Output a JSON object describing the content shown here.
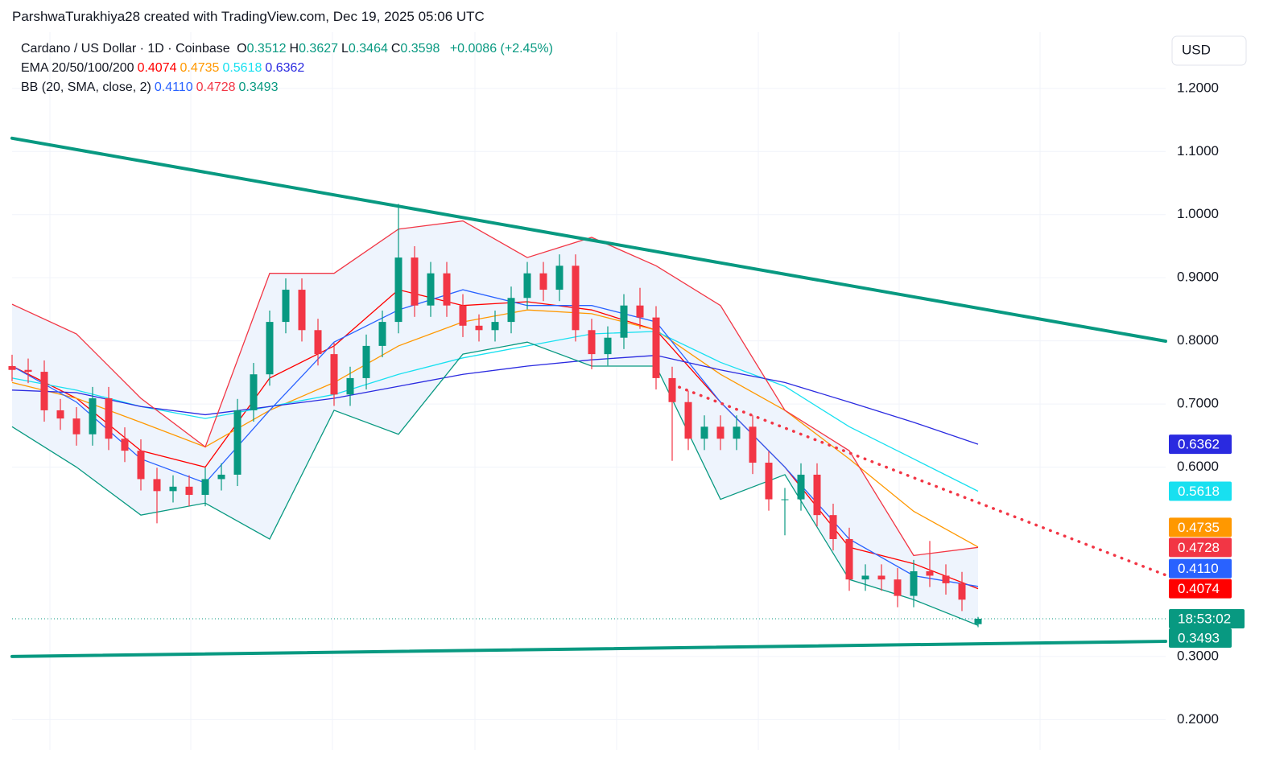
{
  "credit": "ParshwaTurakhiya28 created with TradingView.com, Dec 19, 2025 05:06 UTC",
  "chart_data": {
    "type": "candlestick",
    "title": "Cardano / US Dollar · 1D · Coinbase",
    "currency": "USD",
    "ohlc": [
      {
        "label": "O",
        "value": 0.3512
      },
      {
        "label": "H",
        "value": 0.3627
      },
      {
        "label": "L",
        "value": 0.3464
      },
      {
        "label": "C",
        "value": 0.3598
      }
    ],
    "change": "+0.0086 (+2.45%)",
    "up_color": "#089981",
    "down_color": "#f23645",
    "open": [
      0.76,
      0.754,
      0.751,
      0.69,
      0.677,
      0.652,
      0.709,
      0.645,
      0.626,
      0.581,
      0.562,
      0.569,
      0.556,
      0.581,
      0.588,
      0.69,
      0.747,
      0.83,
      0.881,
      0.817,
      0.779,
      0.715,
      0.741,
      0.792,
      0.83,
      0.932,
      0.856,
      0.907,
      0.856,
      0.824,
      0.817,
      0.83,
      0.868,
      0.907,
      0.881,
      0.919,
      0.817,
      0.779,
      0.805,
      0.856,
      0.837,
      0.741,
      0.703,
      0.645,
      0.664,
      0.645,
      0.664,
      0.607,
      0.549,
      0.549,
      0.588,
      0.524,
      0.486,
      0.422,
      0.428,
      0.422,
      0.396,
      0.435,
      0.428,
      0.416,
      0.3512
    ],
    "high": [
      0.778,
      0.772,
      0.769,
      0.708,
      0.695,
      0.727,
      0.727,
      0.663,
      0.644,
      0.599,
      0.587,
      0.587,
      0.599,
      0.606,
      0.708,
      0.765,
      0.848,
      0.899,
      0.899,
      0.835,
      0.797,
      0.759,
      0.81,
      0.848,
      1.017,
      0.95,
      0.925,
      0.925,
      0.874,
      0.842,
      0.848,
      0.886,
      0.925,
      0.925,
      0.937,
      0.937,
      0.835,
      0.823,
      0.874,
      0.884,
      0.855,
      0.759,
      0.721,
      0.682,
      0.682,
      0.682,
      0.682,
      0.625,
      0.567,
      0.606,
      0.606,
      0.542,
      0.504,
      0.446,
      0.446,
      0.44,
      0.453,
      0.483,
      0.446,
      0.434,
      0.3627
    ],
    "low": [
      0.736,
      0.733,
      0.672,
      0.659,
      0.634,
      0.634,
      0.627,
      0.608,
      0.563,
      0.511,
      0.544,
      0.538,
      0.538,
      0.563,
      0.57,
      0.672,
      0.729,
      0.812,
      0.799,
      0.761,
      0.697,
      0.697,
      0.723,
      0.774,
      0.812,
      0.838,
      0.838,
      0.838,
      0.806,
      0.799,
      0.799,
      0.812,
      0.85,
      0.863,
      0.863,
      0.799,
      0.755,
      0.761,
      0.787,
      0.819,
      0.723,
      0.61,
      0.627,
      0.627,
      0.627,
      0.627,
      0.589,
      0.531,
      0.492,
      0.531,
      0.506,
      0.468,
      0.404,
      0.404,
      0.404,
      0.378,
      0.378,
      0.41,
      0.398,
      0.372,
      0.3464
    ],
    "close": [
      0.754,
      0.751,
      0.69,
      0.677,
      0.652,
      0.709,
      0.645,
      0.626,
      0.581,
      0.562,
      0.569,
      0.556,
      0.581,
      0.588,
      0.69,
      0.747,
      0.83,
      0.881,
      0.817,
      0.779,
      0.715,
      0.741,
      0.792,
      0.83,
      0.932,
      0.856,
      0.907,
      0.856,
      0.824,
      0.817,
      0.83,
      0.868,
      0.907,
      0.881,
      0.919,
      0.817,
      0.779,
      0.805,
      0.856,
      0.837,
      0.741,
      0.703,
      0.645,
      0.664,
      0.645,
      0.664,
      0.607,
      0.549,
      0.549,
      0.588,
      0.524,
      0.486,
      0.422,
      0.428,
      0.422,
      0.396,
      0.435,
      0.428,
      0.416,
      0.39,
      0.3598
    ],
    "ylim": [
      0.152,
      1.289
    ],
    "yticks": [
      {
        "value": 1.2,
        "label": "1.2000"
      },
      {
        "value": 1.1,
        "label": "1.1000"
      },
      {
        "value": 1.0,
        "label": "1.0000"
      },
      {
        "value": 0.9,
        "label": "0.9000"
      },
      {
        "value": 0.8,
        "label": "0.8000"
      },
      {
        "value": 0.7,
        "label": "0.7000"
      },
      {
        "value": 0.6,
        "label": "0.6000"
      },
      {
        "value": 0.3,
        "label": "0.3000"
      },
      {
        "value": 0.2,
        "label": "0.2000"
      }
    ],
    "grid": true,
    "line_x": [
      0,
      4,
      8,
      12,
      16,
      20,
      24,
      28,
      32,
      36,
      40,
      44,
      48,
      52,
      56,
      60
    ],
    "indicators": [
      {
        "name": "EMA 20/50/100/200",
        "series": [
          {
            "color": "#ff0000",
            "last": 0.4074,
            "values": [
              0.76,
              0.709,
              0.626,
              0.6,
              0.741,
              0.792,
              0.881,
              0.856,
              0.862,
              0.849,
              0.817,
              0.703,
              0.6,
              0.473,
              0.447,
              0.4074
            ]
          },
          {
            "color": "#ff9800",
            "last": 0.4735,
            "values": [
              0.734,
              0.709,
              0.671,
              0.632,
              0.69,
              0.734,
              0.792,
              0.83,
              0.849,
              0.843,
              0.817,
              0.747,
              0.69,
              0.613,
              0.53,
              0.4735
            ]
          },
          {
            "color": "#18e0f0",
            "last": 0.5618,
            "values": [
              0.741,
              0.722,
              0.696,
              0.677,
              0.696,
              0.715,
              0.747,
              0.773,
              0.792,
              0.811,
              0.815,
              0.766,
              0.728,
              0.664,
              0.613,
              0.5618
            ]
          },
          {
            "color": "#2a2ae0",
            "last": 0.6362,
            "values": [
              0.722,
              0.718,
              0.696,
              0.683,
              0.696,
              0.709,
              0.728,
              0.747,
              0.76,
              0.77,
              0.777,
              0.754,
              0.734,
              0.703,
              0.671,
              0.6362
            ]
          }
        ]
      },
      {
        "name": "BB (20, SMA, close, 2)",
        "fill": "#eef4fd",
        "series": [
          {
            "color": "#2962ff",
            "last": {
              "value": 0.411,
              "label": "0.4110"
            },
            "values": [
              0.76,
              0.703,
              0.613,
              0.575,
              0.69,
              0.798,
              0.849,
              0.881,
              0.856,
              0.856,
              0.83,
              0.703,
              0.6,
              0.486,
              0.428,
              0.411
            ]
          },
          {
            "color": "#f23645",
            "last": 0.4728,
            "values": [
              0.858,
              0.811,
              0.709,
              0.632,
              0.907,
              0.907,
              0.977,
              0.99,
              0.932,
              0.964,
              0.919,
              0.856,
              0.69,
              0.626,
              0.46,
              0.4728
            ]
          },
          {
            "color": "#089981",
            "last": 0.3493,
            "values": [
              0.664,
              0.6,
              0.524,
              0.543,
              0.486,
              0.69,
              0.652,
              0.779,
              0.798,
              0.76,
              0.76,
              0.549,
              0.588,
              0.422,
              0.39,
              0.3493
            ]
          }
        ]
      }
    ],
    "countdown": "18:53:02",
    "trendlines": [
      {
        "color": "#089981",
        "style": "solid",
        "x": [
          0,
          71.65
        ],
        "y": [
          1.121,
          0.7995
        ]
      },
      {
        "color": "#089981",
        "style": "solid",
        "x": [
          0,
          71.65
        ],
        "y": [
          0.3,
          0.324
        ]
      },
      {
        "color": "#f23645",
        "style": "dotted",
        "x": [
          41,
          71.65
        ],
        "y": [
          0.731,
          0.429
        ]
      }
    ]
  }
}
